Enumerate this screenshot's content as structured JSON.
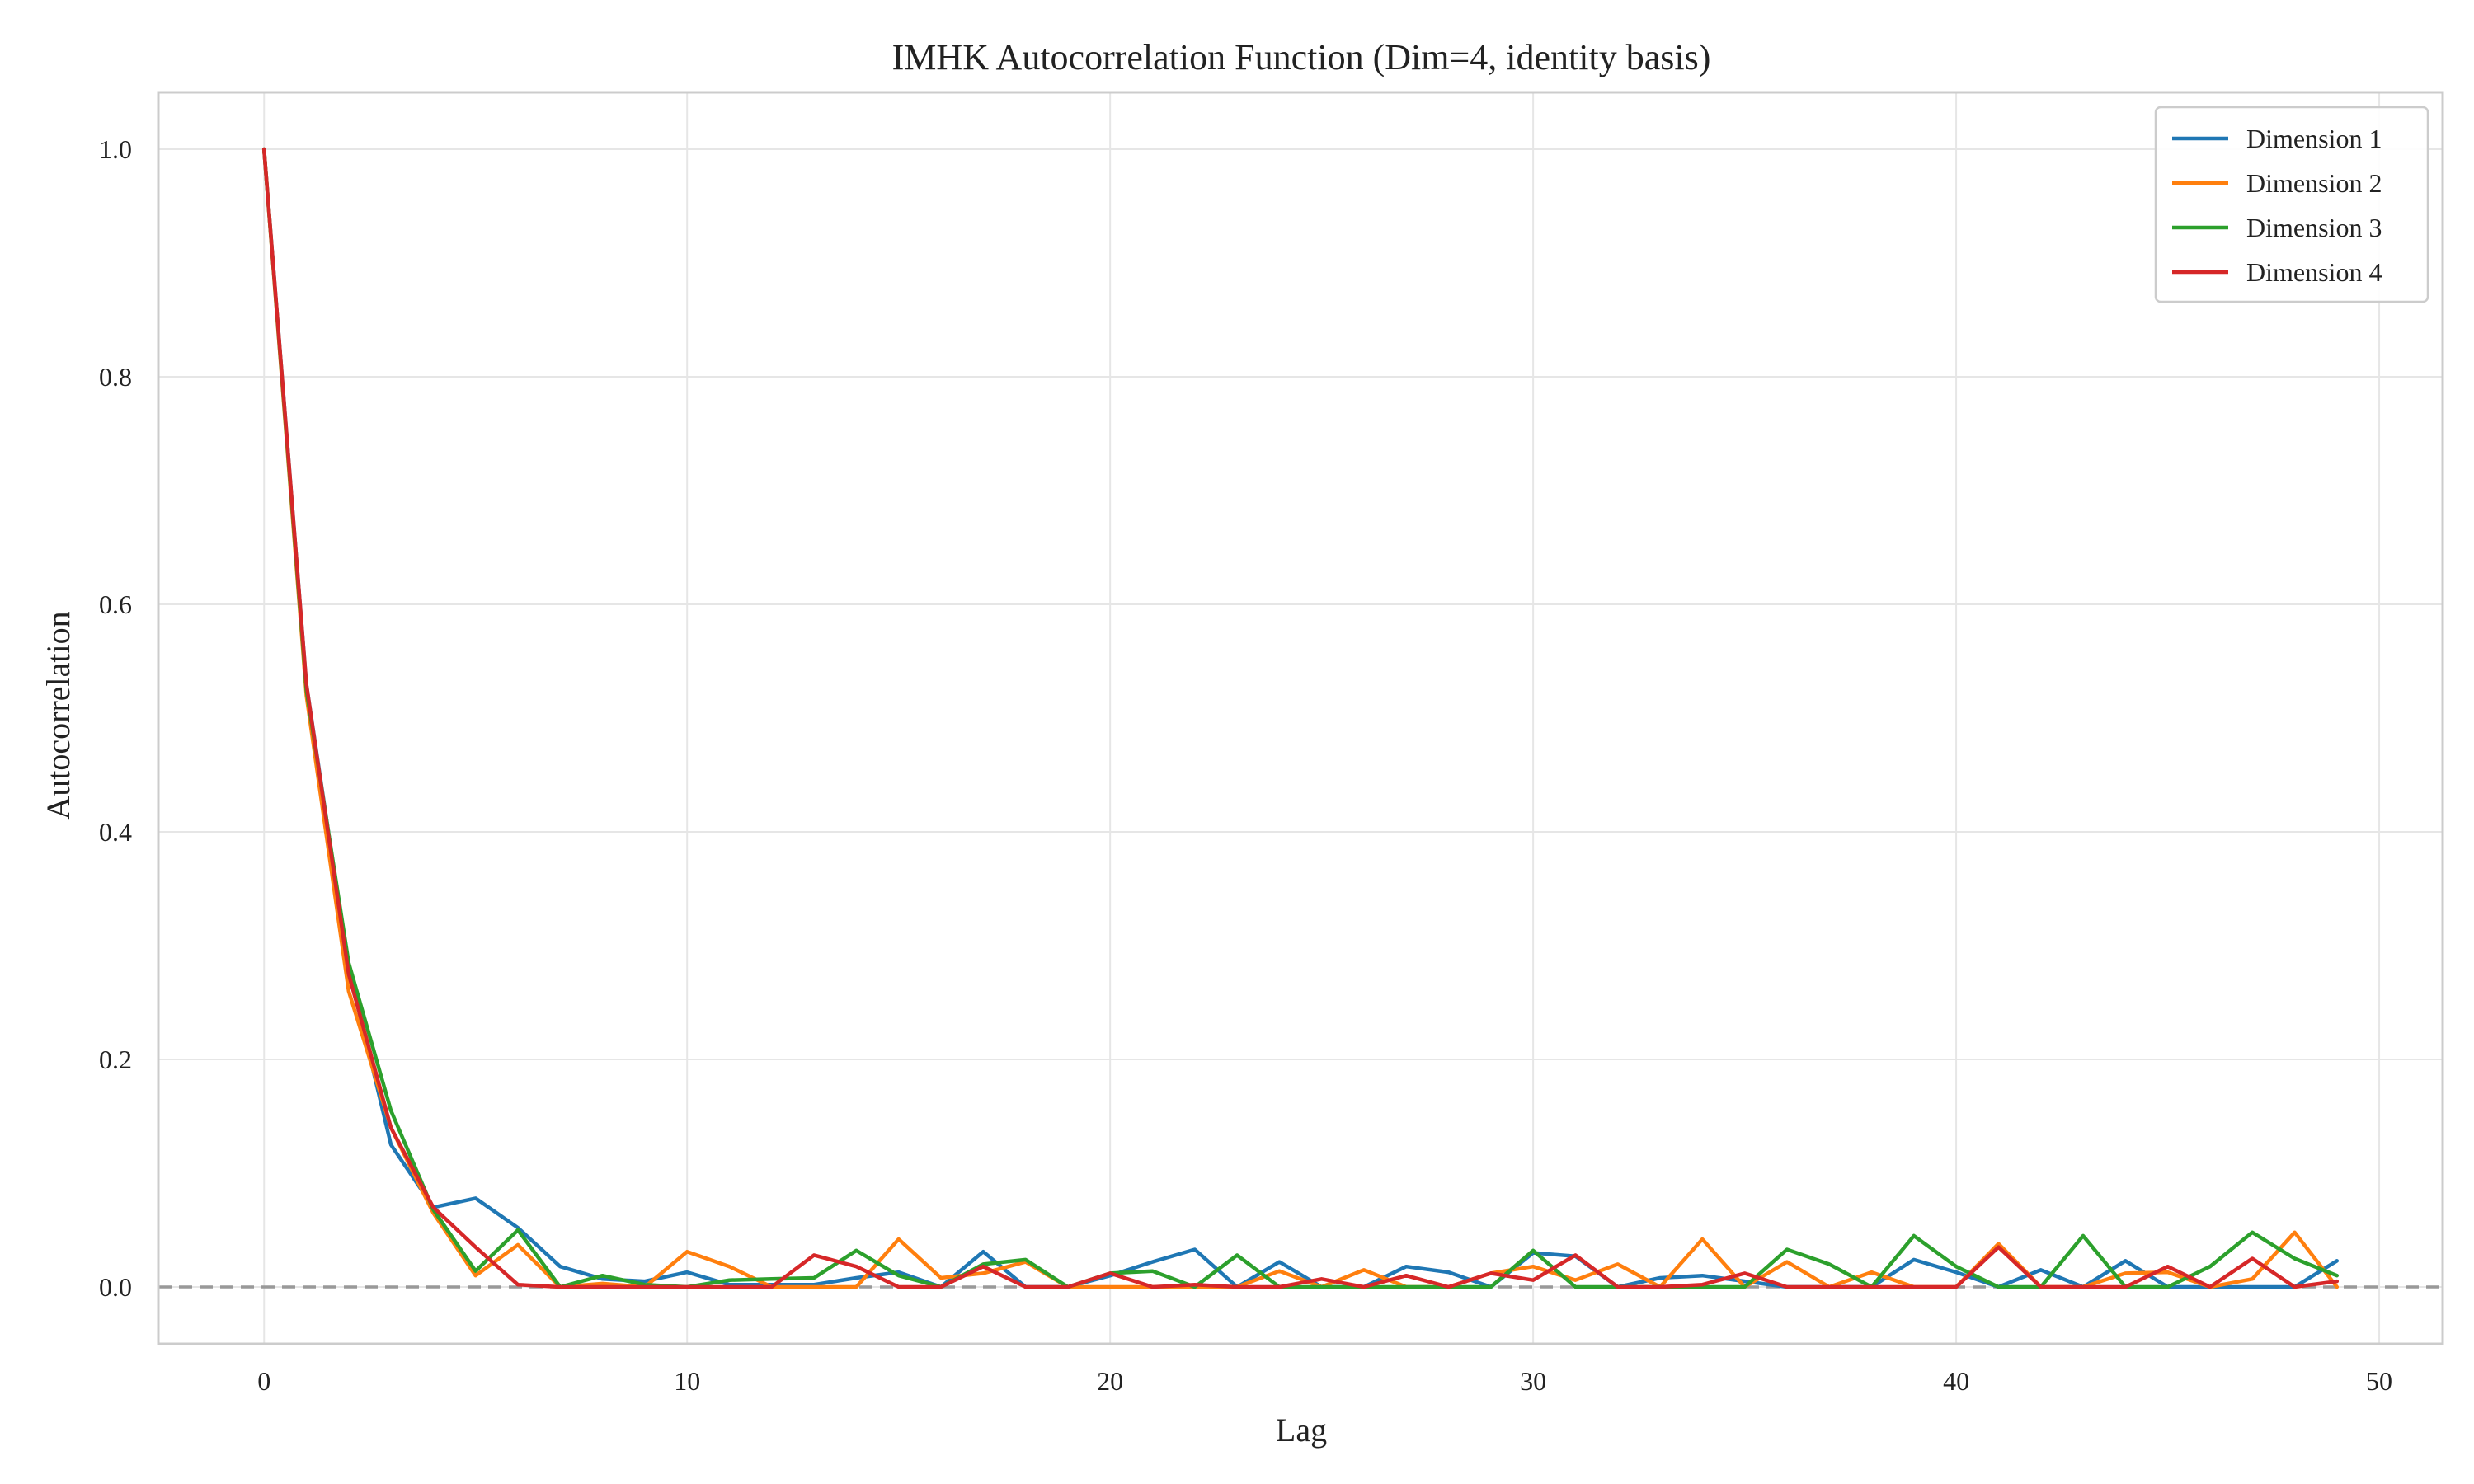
{
  "chart_data": {
    "type": "line",
    "title": "IMHK Autocorrelation Function (Dim=4, identity basis)",
    "xlabel": "Lag",
    "ylabel": "Autocorrelation",
    "xlim": [
      -2.5,
      51.5
    ],
    "ylim": [
      -0.05,
      1.05
    ],
    "xticks": [
      0,
      10,
      20,
      30,
      40,
      50
    ],
    "yticks": [
      0.0,
      0.2,
      0.4,
      0.6,
      0.8,
      1.0
    ],
    "xtick_labels": [
      "0",
      "10",
      "20",
      "30",
      "40",
      "50"
    ],
    "ytick_labels": [
      "0.0",
      "0.2",
      "0.4",
      "0.6",
      "0.8",
      "1.0"
    ],
    "grid": true,
    "legend_position": "top-right",
    "reference_line": {
      "y": 0.0,
      "style": "dashed",
      "color": "#999999"
    },
    "x": [
      0,
      1,
      2,
      3,
      4,
      5,
      6,
      7,
      8,
      9,
      10,
      11,
      12,
      13,
      14,
      15,
      16,
      17,
      18,
      19,
      20,
      21,
      22,
      23,
      24,
      25,
      26,
      27,
      28,
      29,
      30,
      31,
      32,
      33,
      34,
      35,
      36,
      37,
      38,
      39,
      40,
      41,
      42,
      43,
      44,
      45,
      46,
      47,
      48,
      49
    ],
    "series": [
      {
        "name": "Dimension 1",
        "color": "#1f77b4",
        "values": [
          1.0,
          0.53,
          0.28,
          0.125,
          0.07,
          0.078,
          0.052,
          0.018,
          0.007,
          0.005,
          0.013,
          0.002,
          0.002,
          0.002,
          0.008,
          0.013,
          0.0,
          0.031,
          0.0,
          0.0,
          0.01,
          0.022,
          0.033,
          0.0,
          0.022,
          0.0,
          0.0,
          0.018,
          0.013,
          0.0,
          0.03,
          0.027,
          0.0,
          0.008,
          0.01,
          0.005,
          0.0,
          0.0,
          0.0,
          0.024,
          0.013,
          0.0,
          0.015,
          0.0,
          0.023,
          0.0,
          0.0,
          0.0,
          0.0,
          0.023
        ]
      },
      {
        "name": "Dimension 2",
        "color": "#ff7f0e",
        "values": [
          1.0,
          0.52,
          0.26,
          0.14,
          0.065,
          0.01,
          0.037,
          0.0,
          0.003,
          0.0,
          0.031,
          0.018,
          0.0,
          0.0,
          0.0,
          0.042,
          0.008,
          0.012,
          0.022,
          0.0,
          0.0,
          0.0,
          0.0,
          0.0,
          0.014,
          0.0,
          0.015,
          0.0,
          0.0,
          0.012,
          0.018,
          0.006,
          0.02,
          0.0,
          0.042,
          0.0,
          0.022,
          0.0,
          0.013,
          0.0,
          0.0,
          0.038,
          0.0,
          0.0,
          0.012,
          0.013,
          0.0,
          0.007,
          0.048,
          0.0
        ]
      },
      {
        "name": "Dimension 3",
        "color": "#2ca02c",
        "values": [
          1.0,
          0.525,
          0.285,
          0.155,
          0.068,
          0.014,
          0.05,
          0.0,
          0.01,
          0.002,
          0.0,
          0.006,
          0.007,
          0.008,
          0.032,
          0.01,
          0.0,
          0.02,
          0.024,
          0.0,
          0.012,
          0.014,
          0.0,
          0.028,
          0.0,
          0.0,
          0.0,
          0.0,
          0.0,
          0.0,
          0.032,
          0.0,
          0.0,
          0.0,
          0.0,
          0.0,
          0.033,
          0.02,
          0.0,
          0.045,
          0.018,
          0.0,
          0.0,
          0.045,
          0.0,
          0.0,
          0.018,
          0.048,
          0.025,
          0.01
        ]
      },
      {
        "name": "Dimension 4",
        "color": "#d62728",
        "values": [
          1.0,
          0.53,
          0.275,
          0.14,
          0.07,
          0.035,
          0.002,
          0.0,
          0.0,
          0.0,
          0.0,
          0.0,
          0.0,
          0.028,
          0.018,
          0.0,
          0.0,
          0.018,
          0.0,
          0.0,
          0.012,
          0.0,
          0.002,
          0.0,
          0.0,
          0.007,
          0.0,
          0.01,
          0.0,
          0.012,
          0.006,
          0.028,
          0.0,
          0.0,
          0.002,
          0.012,
          0.0,
          0.0,
          0.0,
          0.0,
          0.0,
          0.035,
          0.0,
          0.0,
          0.0,
          0.018,
          0.0,
          0.025,
          0.0,
          0.005
        ]
      }
    ]
  }
}
